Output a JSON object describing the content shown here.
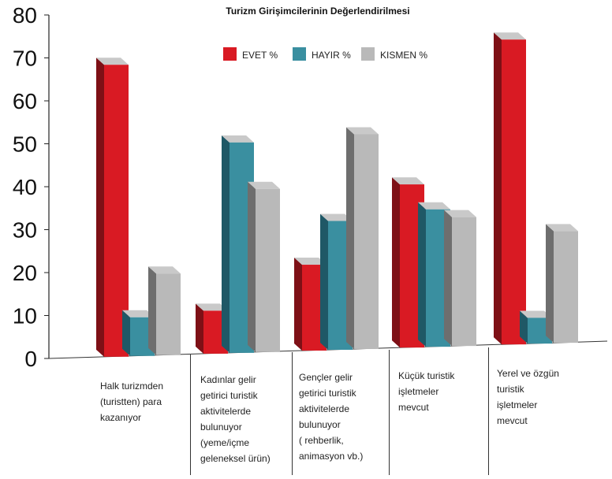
{
  "chart_data": {
    "type": "bar",
    "title": "Turizm Girişimcilerinin Değerlendirilmesi",
    "categories": [
      [
        "Halk turizmden",
        "(turistten) para",
        "kazanıyor"
      ],
      [
        "Kadınlar gelir",
        "getirici turistik",
        "aktivitelerde",
        "bulunuyor",
        "(yeme/içme",
        "geleneksel ürün)"
      ],
      [
        "Gençler gelir",
        "getirici turistik",
        "aktivitelerde",
        "bulunuyor",
        "( rehberlik,",
        "animasyon vb.)"
      ],
      [
        "Küçük turistik",
        "işletmeler",
        "mevcut"
      ],
      [
        "Yerel ve özgün",
        "turistik",
        "işletmeler",
        "mevcut"
      ]
    ],
    "series": [
      {
        "name": "EVET %",
        "values": [
          68,
          10,
          20,
          38,
          71
        ]
      },
      {
        "name": "HAYIR %",
        "values": [
          9,
          49,
          30,
          32,
          6
        ]
      },
      {
        "name": "KISMEN %",
        "values": [
          19,
          38,
          50,
          30,
          26
        ]
      }
    ],
    "ylim": [
      0,
      80
    ],
    "yticks": [
      "0",
      "10",
      "20",
      "30",
      "40",
      "50",
      "60",
      "70",
      "80"
    ],
    "legend": "top-center",
    "grid": false,
    "colors": {
      "evet": "#d91a23",
      "evet_side": "#7e1016",
      "hayir": "#3a8fa0",
      "hayir_side": "#1f5866",
      "kismen": "#b9b9b9",
      "kismen_side": "#6e6e6e"
    }
  }
}
